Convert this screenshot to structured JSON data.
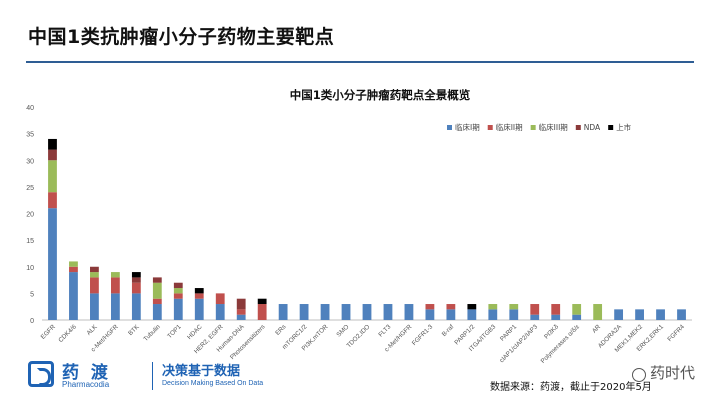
{
  "slide": {
    "title": "中国1类抗肿瘤小分子药物主要靶点",
    "source": "数据来源：药渡，截止于2020年5月",
    "watermark": "药时代"
  },
  "logo": {
    "name_cn": "药 渡",
    "name_en": "Pharmacodia",
    "slogan": "决策基于数据",
    "slogan_en": "Decision Making Based On Data"
  },
  "colors": {
    "clinical_1": "#4f81bd",
    "clinical_2": "#c0504d",
    "clinical_3": "#9bbb59",
    "nda": "#8b3a3a",
    "market": "#000000",
    "title_rule": "#2e5d94"
  },
  "chart_data": {
    "type": "bar",
    "stacked": true,
    "title": "中国1类小分子肿瘤药靶点全景概览",
    "ylim": [
      0,
      40
    ],
    "yticks": [
      0,
      5,
      10,
      15,
      20,
      25,
      30,
      35,
      40
    ],
    "grid": false,
    "legend_position": "top-right",
    "categories": [
      "EGFR",
      "CDK4/6",
      "ALK",
      "c-Met/HGFR",
      "BTK",
      "Tubulin",
      "TOP1",
      "HDAC",
      "HER2, EGFR",
      "Human-DNA",
      "Photosensitizers",
      "ERs",
      "mTORC1/2",
      "PI3K,mTOR",
      "SMO",
      "TDO2,IDO",
      "FLT3",
      "c-Met/HGFR",
      "FGFR1-3",
      "B-raf",
      "PARP1/2",
      "ITGA/ITGB3",
      "PARP1",
      "cIAP1/cIAP2/IAP3",
      "PI3Kδ",
      "Polymerases α/δ/ε",
      "AR",
      "ADORA2A",
      "MEK1,MEK2",
      "ERK2,ERK1",
      "FGFR4"
    ],
    "series": [
      {
        "name": "临床I期",
        "color": "#4f81bd",
        "values": [
          21,
          9,
          5,
          5,
          5,
          3,
          4,
          4,
          3,
          1,
          0,
          3,
          3,
          3,
          3,
          3,
          3,
          3,
          2,
          2,
          2,
          2,
          2,
          1,
          1,
          1,
          0,
          2,
          2,
          2,
          2
        ]
      },
      {
        "name": "临床II期",
        "color": "#c0504d",
        "values": [
          3,
          1,
          3,
          3,
          2,
          1,
          1,
          1,
          2,
          1,
          3,
          0,
          0,
          0,
          0,
          0,
          0,
          0,
          1,
          1,
          0,
          0,
          0,
          2,
          2,
          0,
          0,
          0,
          0,
          0,
          0
        ]
      },
      {
        "name": "临床III期",
        "color": "#9bbb59",
        "values": [
          6,
          1,
          1,
          1,
          0,
          3,
          1,
          0,
          0,
          0,
          0,
          0,
          0,
          0,
          0,
          0,
          0,
          0,
          0,
          0,
          0,
          1,
          1,
          0,
          0,
          2,
          3,
          0,
          0,
          0,
          0
        ]
      },
      {
        "name": "NDA",
        "color": "#8b3a3a",
        "values": [
          2,
          0,
          1,
          0,
          1,
          1,
          1,
          0,
          0,
          2,
          0,
          0,
          0,
          0,
          0,
          0,
          0,
          0,
          0,
          0,
          0,
          0,
          0,
          0,
          0,
          0,
          0,
          0,
          0,
          0,
          0
        ]
      },
      {
        "name": "上市",
        "color": "#000000",
        "values": [
          2,
          0,
          0,
          0,
          1,
          0,
          0,
          1,
          0,
          0,
          1,
          0,
          0,
          0,
          0,
          0,
          0,
          0,
          0,
          0,
          1,
          0,
          0,
          0,
          0,
          0,
          0,
          0,
          0,
          0,
          0
        ]
      }
    ]
  }
}
